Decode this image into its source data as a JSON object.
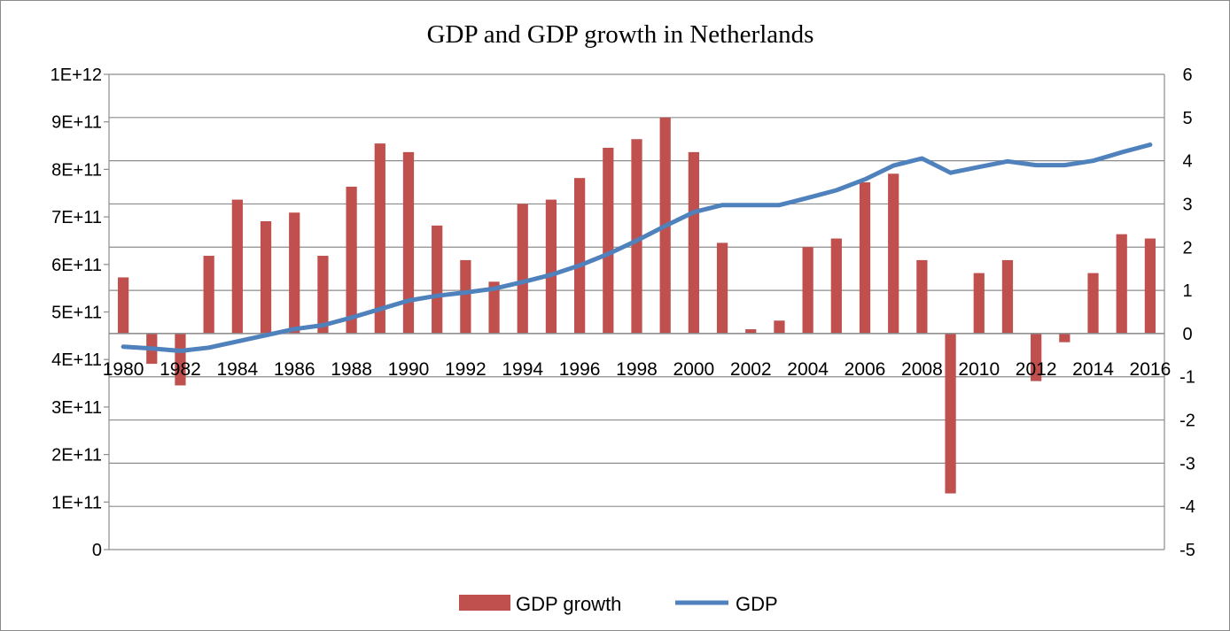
{
  "chart_data": {
    "type": "bar+line",
    "title": "GDP and GDP growth in Netherlands",
    "years": [
      1980,
      1981,
      1982,
      1983,
      1984,
      1985,
      1986,
      1987,
      1988,
      1989,
      1990,
      1991,
      1992,
      1993,
      1994,
      1995,
      1996,
      1997,
      1998,
      1999,
      2000,
      2001,
      2002,
      2003,
      2004,
      2005,
      2006,
      2007,
      2008,
      2009,
      2010,
      2011,
      2012,
      2013,
      2014,
      2015,
      2016
    ],
    "x_tick_labels": [
      "1980",
      "1982",
      "1984",
      "1986",
      "1988",
      "1990",
      "1992",
      "1994",
      "1996",
      "1998",
      "2000",
      "2002",
      "2004",
      "2006",
      "2008",
      "2010",
      "2012",
      "2014",
      "2016"
    ],
    "left_axis": {
      "series": "GDP",
      "ylim": [
        0,
        1000000000000
      ],
      "tick_labels": [
        "0",
        "1E+11",
        "2E+11",
        "3E+11",
        "4E+11",
        "5E+11",
        "6E+11",
        "7E+11",
        "8E+11",
        "9E+11",
        "1E+12"
      ]
    },
    "right_axis": {
      "series": "GDP growth",
      "ylim": [
        -5,
        6
      ],
      "tick_labels": [
        "-5",
        "-4",
        "-3",
        "-2",
        "-1",
        "0",
        "1",
        "2",
        "3",
        "4",
        "5",
        "6"
      ]
    },
    "series": [
      {
        "name": "GDP growth",
        "kind": "bar",
        "axis": "right",
        "color": "#c0504d",
        "values": [
          1.3,
          -0.7,
          -1.2,
          1.8,
          3.1,
          2.6,
          2.8,
          1.8,
          3.4,
          4.4,
          4.2,
          2.5,
          1.7,
          1.2,
          3.0,
          3.1,
          3.6,
          4.3,
          4.5,
          5.0,
          4.2,
          2.1,
          0.1,
          0.3,
          2.0,
          2.2,
          3.5,
          3.7,
          1.7,
          -3.7,
          1.4,
          1.7,
          -1.1,
          -0.2,
          1.4,
          2.3,
          2.2
        ]
      },
      {
        "name": "GDP",
        "kind": "line",
        "axis": "left",
        "color": "#4f81bd",
        "values": [
          427000000000,
          423000000000,
          418000000000,
          425000000000,
          438000000000,
          451000000000,
          464000000000,
          472000000000,
          488000000000,
          506000000000,
          524000000000,
          534000000000,
          541000000000,
          549000000000,
          563000000000,
          578000000000,
          598000000000,
          622000000000,
          650000000000,
          681000000000,
          710000000000,
          725000000000,
          725000000000,
          725000000000,
          740000000000,
          756000000000,
          779000000000,
          808000000000,
          823000000000,
          793000000000,
          805000000000,
          817000000000,
          809000000000,
          809000000000,
          818000000000,
          836000000000,
          852000000000
        ]
      }
    ],
    "legend": {
      "position": "bottom",
      "items": [
        "GDP growth",
        "GDP"
      ]
    }
  }
}
